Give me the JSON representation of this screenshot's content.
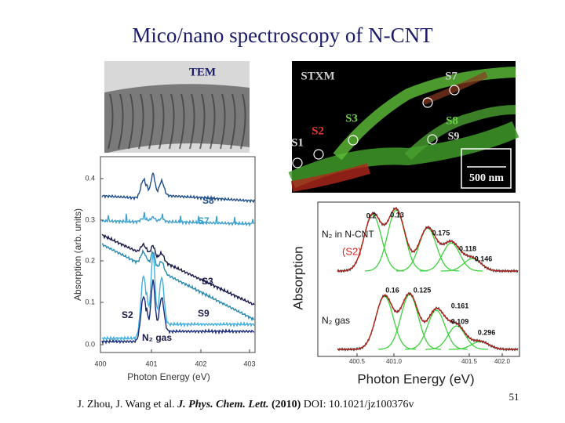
{
  "title": "Mico/nano spectroscopy of N-CNT",
  "tem": {
    "label": "TEM"
  },
  "stxm": {
    "label": "STXM",
    "spots": [
      "S1",
      "S2",
      "S3",
      "S7",
      "S8",
      "S9"
    ],
    "scale_bar": "500 nm"
  },
  "left_plot": {
    "y_label": "Absorption (arb. units)",
    "x_label": "Photon Energy (eV)",
    "xticks": [
      "400",
      "401",
      "402",
      "403"
    ],
    "yticks": [
      "0.4",
      "0.3",
      "0.2",
      "0.1",
      "0.0"
    ],
    "curve_labels": [
      "S8",
      "S7",
      "S3",
      "S9",
      "S2",
      "N₂ gas"
    ]
  },
  "right_plot": {
    "y_label": "Absorption",
    "x_label": "Photon Energy (eV)",
    "xticks": [
      "400.5",
      "401.0",
      "401.5",
      "402.0"
    ],
    "top_label": "N₂ in N-CNT",
    "top_sample": "(S2)",
    "top_peaks": [
      "0.2",
      "0.13",
      "0.175",
      "0.118",
      "0.146"
    ],
    "bottom_label": "N₂ gas",
    "bottom_peaks": [
      "0.16",
      "0.125",
      "0.161",
      "0.109",
      "0.296"
    ]
  },
  "citation": {
    "authors": "J. Zhou, J. Wang et al.",
    "journal": "J. Phys. Chem. Lett.",
    "year": "(2010)",
    "doi": "DOI: 10.1021/jz100376v"
  },
  "page_number": "51"
}
